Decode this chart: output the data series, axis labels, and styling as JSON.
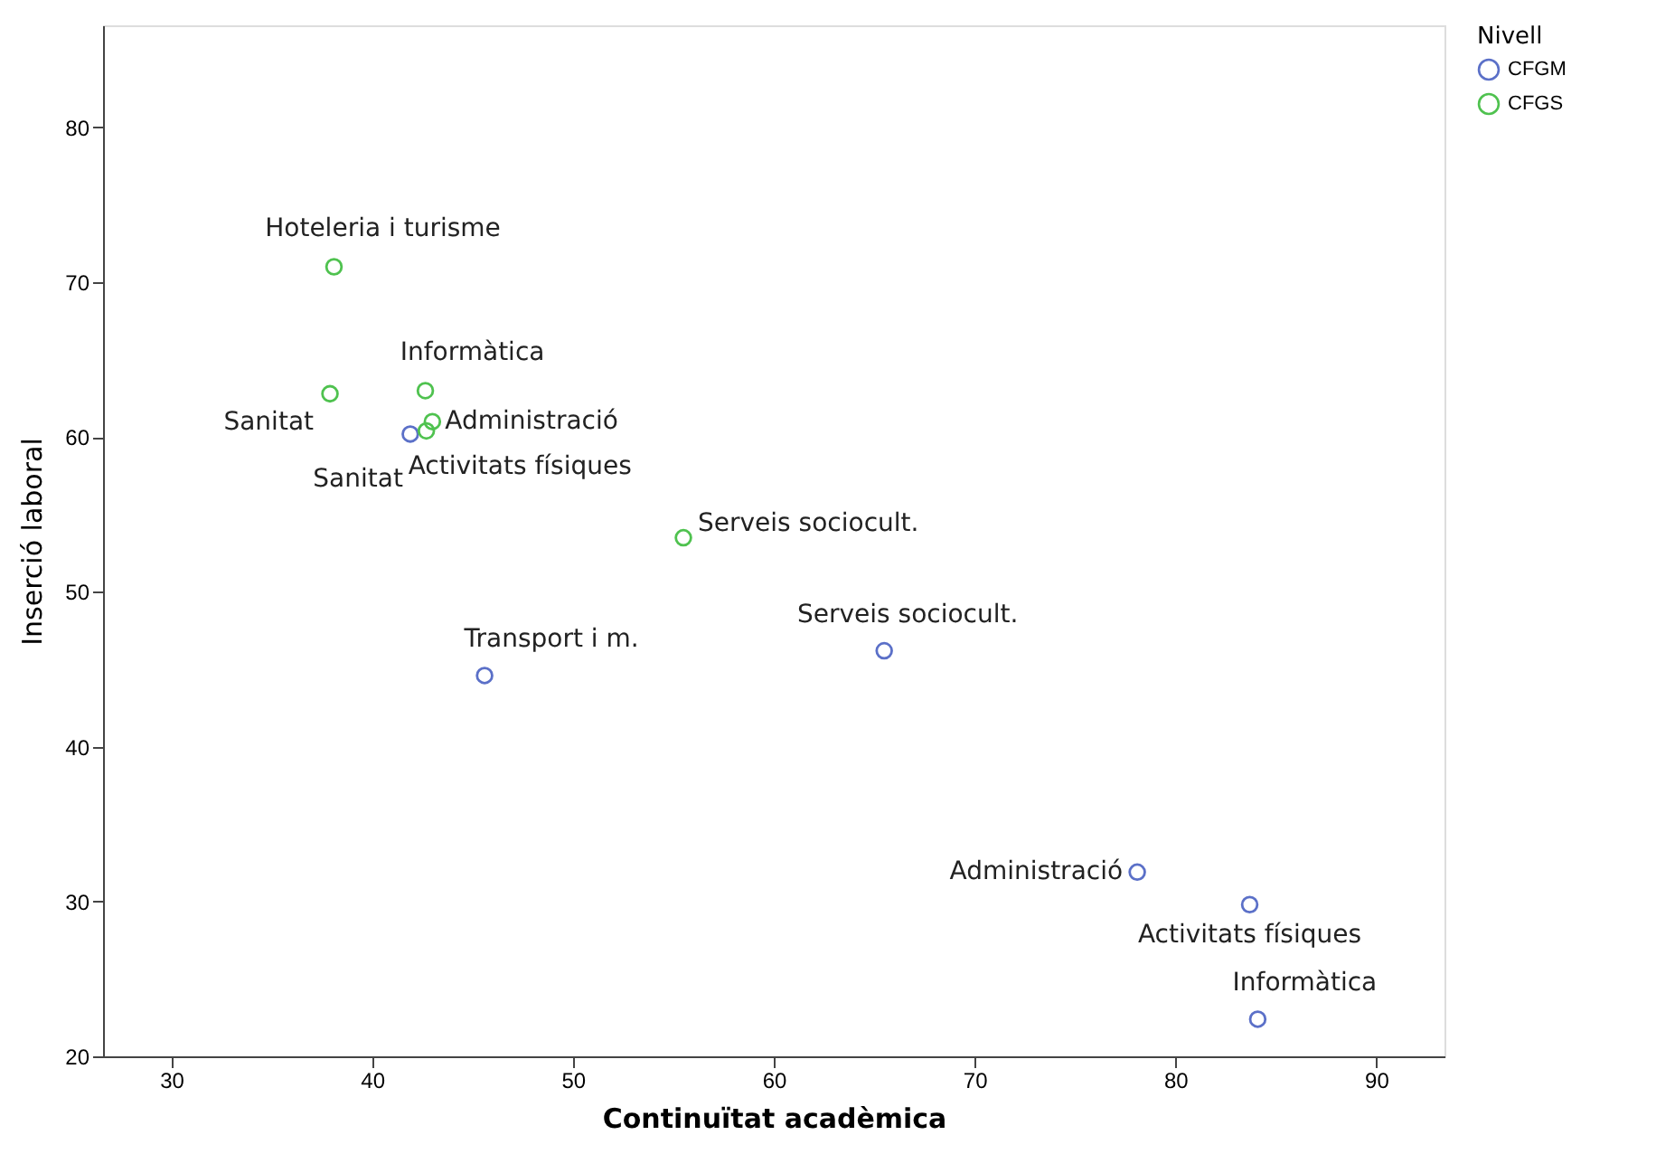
{
  "chart_data": {
    "type": "scatter",
    "xlabel": "Continuïtat acadèmica",
    "ylabel": "Inserció laboral",
    "legend_title": "Nivell",
    "legend": "top right",
    "grid": false,
    "marker": "circle",
    "xlim": [
      26.6,
      93.4
    ],
    "ylim": [
      20,
      86.6
    ],
    "xticks": [
      30,
      40,
      50,
      60,
      70,
      80,
      90
    ],
    "yticks": [
      20,
      30,
      40,
      50,
      60,
      70,
      80
    ],
    "series": [
      {
        "name": "CFGM",
        "color": "#5b70c8",
        "x": [
          41.9,
          45.6,
          65.5,
          78.1,
          83.7,
          84.1
        ],
        "values": [
          60.2,
          44.6,
          46.2,
          31.9,
          29.8,
          22.4
        ]
      },
      {
        "name": "CFGS",
        "color": "#4fc24f",
        "x": [
          38.1,
          42.65,
          37.9,
          43.0,
          42.7,
          55.5
        ],
        "values": [
          71.0,
          63.0,
          62.8,
          61.0,
          60.4,
          53.5
        ]
      }
    ],
    "annotations": [
      {
        "text": "Hoteleria i turisme",
        "x": 38.1,
        "y": 71.0
      },
      {
        "text": "Informàtica",
        "x": 42.65,
        "y": 63.0
      },
      {
        "text": "Sanitat",
        "x": 37.9,
        "y": 62.8
      },
      {
        "text": "Administració",
        "x": 43.0,
        "y": 61.0
      },
      {
        "text": "Activitats físiques",
        "x": 42.7,
        "y": 60.4
      },
      {
        "text": "Sanitat",
        "x": 41.9,
        "y": 60.2
      },
      {
        "text": "Serveis sociocult.",
        "x": 55.5,
        "y": 53.5
      },
      {
        "text": "Transport i m.",
        "x": 45.6,
        "y": 44.6
      },
      {
        "text": "Serveis sociocult.",
        "x": 65.5,
        "y": 46.2
      },
      {
        "text": "Administració",
        "x": 78.1,
        "y": 31.9
      },
      {
        "text": "Activitats físiques",
        "x": 83.7,
        "y": 29.8
      },
      {
        "text": "Informàtica",
        "x": 84.1,
        "y": 22.4
      }
    ]
  }
}
